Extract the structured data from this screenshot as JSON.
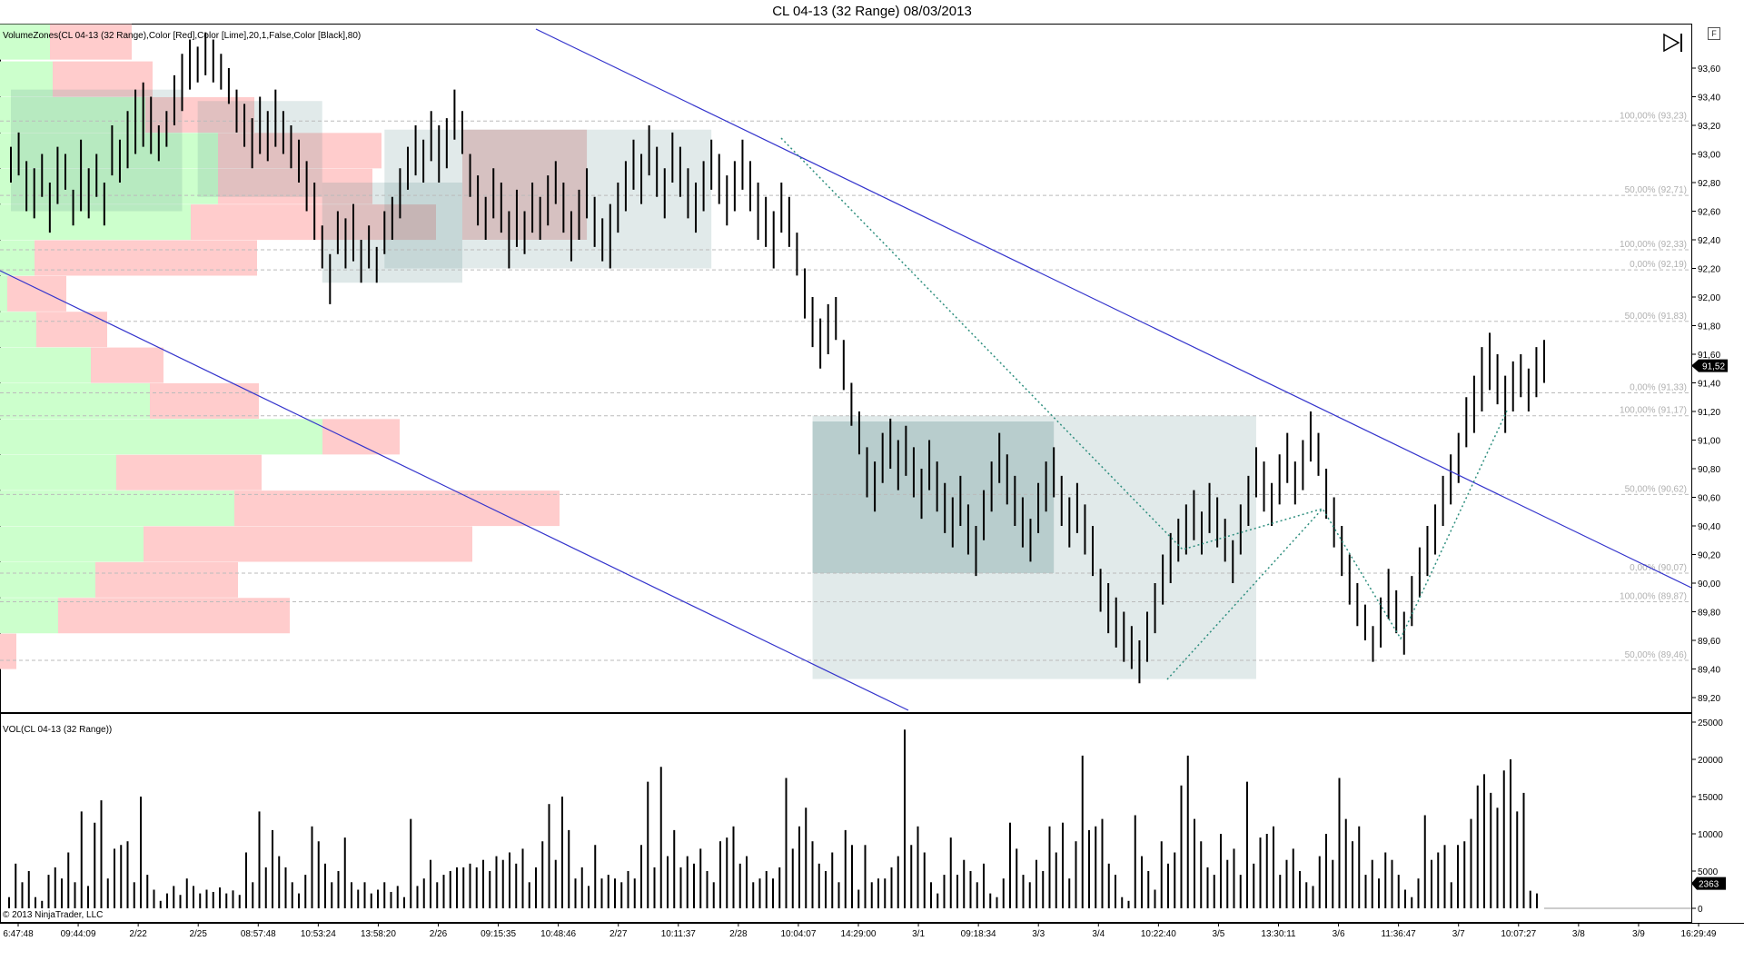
{
  "title": "CL 04-13 (32 Range)  08/03/2013",
  "f_button": "F",
  "copyright": "© 2013 NinjaTrader, LLC",
  "price_panel_label": "VolumeZones(CL 04-13 (32 Range),Color [Red],Color [Lime],20,1,False,Color [Black],80)",
  "volume_panel_label": "VOL(CL 04-13 (32 Range))",
  "current_price": "91,52",
  "current_volume": "2363",
  "chart_data": {
    "type": "bar",
    "price_axis": {
      "ylim": [
        89.1,
        93.85
      ],
      "ticks": [
        "93,60",
        "93,40",
        "93,20",
        "93,00",
        "92,80",
        "92,60",
        "92,40",
        "92,20",
        "92,00",
        "91,80",
        "91,60",
        "91,40",
        "91,20",
        "91,00",
        "90,80",
        "90,60",
        "90,40",
        "90,20",
        "90,00",
        "89,80",
        "89,60",
        "89,40",
        "89,20"
      ]
    },
    "volume_axis": {
      "ylim": [
        0,
        25000
      ],
      "ticks": [
        "25000",
        "20000",
        "15000",
        "10000",
        "5000",
        "0"
      ]
    },
    "time_labels": [
      "6:47:48",
      "09:44:09",
      "2/22",
      "2/25",
      "08:57:48",
      "10:53:24",
      "13:58:20",
      "2/26",
      "09:15:35",
      "10:48:46",
      "2/27",
      "10:11:37",
      "2/28",
      "10:04:07",
      "14:29:00",
      "3/1",
      "09:18:34",
      "3/3",
      "3/4",
      "10:22:40",
      "3/5",
      "13:30:11",
      "3/6",
      "11:36:47",
      "3/7",
      "10:07:27",
      "3/8",
      "3/9",
      "16:29:49"
    ],
    "fib_labels": [
      "100,00% (93,23)",
      "50,00% (92,71)",
      "100,00% (92,33)",
      "0,00% (92,19)",
      "50,00% (91,83)",
      "0,00% (91,33)",
      "100,00% (91,17)",
      "50,00% (90,62)",
      "0,00% (90,07)",
      "100,00% (89,87)",
      "50,00% (89,46)"
    ],
    "fib_levels": [
      93.23,
      92.71,
      92.33,
      92.19,
      91.83,
      91.33,
      91.17,
      90.62,
      90.07,
      89.87,
      89.46
    ],
    "volume_zones": [
      {
        "price": 93.78,
        "buy": 55,
        "sell": 90
      },
      {
        "price": 93.52,
        "buy": 58,
        "sell": 110
      },
      {
        "price": 93.27,
        "buy": 160,
        "sell": 120
      },
      {
        "price": 93.02,
        "buy": 240,
        "sell": 180
      },
      {
        "price": 92.77,
        "buy": 240,
        "sell": 170
      },
      {
        "price": 92.52,
        "buy": 210,
        "sell": 270
      },
      {
        "price": 92.27,
        "buy": 38,
        "sell": 245
      },
      {
        "price": 92.02,
        "buy": 8,
        "sell": 65
      },
      {
        "price": 91.77,
        "buy": 40,
        "sell": 78
      },
      {
        "price": 91.52,
        "buy": 100,
        "sell": 80
      },
      {
        "price": 91.27,
        "buy": 165,
        "sell": 120
      },
      {
        "price": 91.02,
        "buy": 355,
        "sell": 85
      },
      {
        "price": 90.77,
        "buy": 128,
        "sell": 160
      },
      {
        "price": 90.52,
        "buy": 258,
        "sell": 358
      },
      {
        "price": 90.27,
        "buy": 158,
        "sell": 362
      },
      {
        "price": 90.02,
        "buy": 105,
        "sell": 157
      },
      {
        "price": 89.77,
        "buy": 64,
        "sell": 255
      },
      {
        "price": 89.52,
        "buy": 0,
        "sell": 18
      }
    ],
    "price_bars": [
      [
        93.05,
        92.8
      ],
      [
        93.15,
        92.85
      ],
      [
        92.95,
        92.6
      ],
      [
        92.9,
        92.55
      ],
      [
        93.0,
        92.7
      ],
      [
        92.8,
        92.45
      ],
      [
        93.05,
        92.65
      ],
      [
        93.0,
        92.75
      ],
      [
        92.75,
        92.5
      ],
      [
        93.1,
        92.6
      ],
      [
        92.9,
        92.55
      ],
      [
        93.0,
        92.7
      ],
      [
        92.8,
        92.5
      ],
      [
        93.2,
        92.85
      ],
      [
        93.1,
        92.8
      ],
      [
        93.3,
        92.9
      ],
      [
        93.45,
        93.0
      ],
      [
        93.5,
        93.05
      ],
      [
        93.4,
        93.0
      ],
      [
        93.2,
        92.95
      ],
      [
        93.3,
        93.05
      ],
      [
        93.55,
        93.2
      ],
      [
        93.7,
        93.3
      ],
      [
        93.8,
        93.45
      ],
      [
        93.75,
        93.5
      ],
      [
        93.85,
        93.55
      ],
      [
        93.8,
        93.5
      ],
      [
        93.7,
        93.45
      ],
      [
        93.6,
        93.35
      ],
      [
        93.45,
        93.15
      ],
      [
        93.35,
        93.05
      ],
      [
        93.25,
        92.9
      ],
      [
        93.4,
        93.0
      ],
      [
        93.3,
        92.95
      ],
      [
        93.45,
        93.05
      ],
      [
        93.3,
        93.0
      ],
      [
        93.2,
        92.9
      ],
      [
        93.1,
        92.8
      ],
      [
        92.95,
        92.6
      ],
      [
        92.8,
        92.4
      ],
      [
        92.5,
        92.2
      ],
      [
        92.3,
        91.95
      ],
      [
        92.6,
        92.3
      ],
      [
        92.55,
        92.2
      ],
      [
        92.65,
        92.25
      ],
      [
        92.4,
        92.1
      ],
      [
        92.5,
        92.2
      ],
      [
        92.35,
        92.1
      ],
      [
        92.6,
        92.3
      ],
      [
        92.7,
        92.4
      ],
      [
        92.9,
        92.55
      ],
      [
        93.05,
        92.75
      ],
      [
        93.2,
        92.85
      ],
      [
        93.1,
        92.8
      ],
      [
        93.3,
        92.95
      ],
      [
        93.2,
        92.8
      ],
      [
        93.25,
        92.9
      ],
      [
        93.45,
        93.1
      ],
      [
        93.3,
        93.0
      ],
      [
        93.0,
        92.7
      ],
      [
        92.85,
        92.5
      ],
      [
        92.7,
        92.4
      ],
      [
        92.9,
        92.55
      ],
      [
        92.8,
        92.45
      ],
      [
        92.6,
        92.2
      ],
      [
        92.75,
        92.35
      ],
      [
        92.6,
        92.3
      ],
      [
        92.8,
        92.45
      ],
      [
        92.7,
        92.4
      ],
      [
        92.85,
        92.5
      ],
      [
        92.95,
        92.65
      ],
      [
        92.8,
        92.45
      ],
      [
        92.6,
        92.25
      ],
      [
        92.75,
        92.4
      ],
      [
        92.9,
        92.55
      ],
      [
        92.7,
        92.35
      ],
      [
        92.55,
        92.25
      ],
      [
        92.65,
        92.2
      ],
      [
        92.8,
        92.45
      ],
      [
        92.95,
        92.6
      ],
      [
        93.1,
        92.75
      ],
      [
        93.0,
        92.65
      ],
      [
        93.2,
        92.85
      ],
      [
        93.05,
        92.7
      ],
      [
        92.9,
        92.55
      ],
      [
        93.15,
        92.8
      ],
      [
        93.05,
        92.7
      ],
      [
        92.9,
        92.55
      ],
      [
        92.8,
        92.45
      ],
      [
        92.95,
        92.6
      ],
      [
        93.1,
        92.75
      ],
      [
        93.0,
        92.65
      ],
      [
        92.85,
        92.5
      ],
      [
        92.95,
        92.6
      ],
      [
        93.1,
        92.75
      ],
      [
        92.95,
        92.6
      ],
      [
        92.8,
        92.4
      ],
      [
        92.7,
        92.35
      ],
      [
        92.6,
        92.2
      ],
      [
        92.8,
        92.45
      ],
      [
        92.7,
        92.35
      ],
      [
        92.45,
        92.15
      ],
      [
        92.2,
        91.85
      ],
      [
        92.0,
        91.65
      ],
      [
        91.85,
        91.5
      ],
      [
        91.95,
        91.6
      ],
      [
        92.0,
        91.7
      ],
      [
        91.7,
        91.35
      ],
      [
        91.4,
        91.1
      ],
      [
        91.2,
        90.9
      ],
      [
        90.95,
        90.6
      ],
      [
        90.85,
        90.5
      ],
      [
        91.05,
        90.7
      ],
      [
        91.15,
        90.8
      ],
      [
        91.0,
        90.65
      ],
      [
        91.1,
        90.75
      ],
      [
        90.95,
        90.6
      ],
      [
        90.8,
        90.45
      ],
      [
        91.0,
        90.65
      ],
      [
        90.85,
        90.5
      ],
      [
        90.7,
        90.35
      ],
      [
        90.6,
        90.25
      ],
      [
        90.75,
        90.4
      ],
      [
        90.55,
        90.2
      ],
      [
        90.4,
        90.05
      ],
      [
        90.65,
        90.3
      ],
      [
        90.85,
        90.5
      ],
      [
        91.05,
        90.7
      ],
      [
        90.9,
        90.55
      ],
      [
        90.75,
        90.4
      ],
      [
        90.6,
        90.25
      ],
      [
        90.45,
        90.15
      ],
      [
        90.7,
        90.35
      ],
      [
        90.85,
        90.5
      ],
      [
        90.95,
        90.6
      ],
      [
        90.75,
        90.4
      ],
      [
        90.6,
        90.25
      ],
      [
        90.7,
        90.35
      ],
      [
        90.55,
        90.2
      ],
      [
        90.4,
        90.05
      ],
      [
        90.1,
        89.8
      ],
      [
        90.0,
        89.65
      ],
      [
        89.9,
        89.55
      ],
      [
        89.8,
        89.45
      ],
      [
        89.7,
        89.4
      ],
      [
        89.6,
        89.3
      ],
      [
        89.8,
        89.45
      ],
      [
        90.0,
        89.65
      ],
      [
        90.2,
        89.85
      ],
      [
        90.35,
        90.0
      ],
      [
        90.45,
        90.15
      ],
      [
        90.55,
        90.2
      ],
      [
        90.65,
        90.3
      ],
      [
        90.5,
        90.2
      ],
      [
        90.7,
        90.35
      ],
      [
        90.6,
        90.25
      ],
      [
        90.45,
        90.15
      ],
      [
        90.3,
        90.0
      ],
      [
        90.55,
        90.2
      ],
      [
        90.75,
        90.4
      ],
      [
        90.95,
        90.6
      ],
      [
        90.85,
        90.5
      ],
      [
        90.7,
        90.4
      ],
      [
        90.9,
        90.55
      ],
      [
        91.05,
        90.7
      ],
      [
        90.85,
        90.55
      ],
      [
        91.0,
        90.65
      ],
      [
        91.2,
        90.85
      ],
      [
        91.05,
        90.75
      ],
      [
        90.8,
        90.45
      ],
      [
        90.6,
        90.25
      ],
      [
        90.4,
        90.05
      ],
      [
        90.2,
        89.85
      ],
      [
        90.0,
        89.7
      ],
      [
        89.85,
        89.6
      ],
      [
        89.7,
        89.45
      ],
      [
        89.9,
        89.55
      ],
      [
        90.1,
        89.75
      ],
      [
        89.95,
        89.65
      ],
      [
        89.8,
        89.5
      ],
      [
        90.05,
        89.7
      ],
      [
        90.25,
        89.9
      ],
      [
        90.4,
        90.05
      ],
      [
        90.55,
        90.2
      ],
      [
        90.75,
        90.4
      ],
      [
        90.9,
        90.55
      ],
      [
        91.05,
        90.7
      ],
      [
        91.3,
        90.95
      ],
      [
        91.45,
        91.05
      ],
      [
        91.65,
        91.2
      ],
      [
        91.75,
        91.35
      ],
      [
        91.6,
        91.25
      ],
      [
        91.45,
        91.05
      ],
      [
        91.55,
        91.2
      ],
      [
        91.6,
        91.3
      ],
      [
        91.5,
        91.2
      ],
      [
        91.65,
        91.3
      ],
      [
        91.7,
        91.4
      ]
    ],
    "volume_bars": [
      1500,
      6000,
      3500,
      5000,
      1500,
      1000,
      4500,
      5500,
      4000,
      7500,
      3500,
      13000,
      3000,
      11500,
      14500,
      4000,
      8000,
      8500,
      9000,
      3500,
      15000,
      4500,
      2500,
      1000,
      2000,
      3000,
      1800,
      4000,
      3000,
      2000,
      2500,
      2200,
      2800,
      2000,
      2400,
      1800,
      7500,
      3500,
      13000,
      5500,
      10500,
      7000,
      5500,
      3500,
      2000,
      4500,
      11000,
      9000,
      6000,
      3500,
      5000,
      9500,
      3500,
      2500,
      3500,
      2000,
      2500,
      3500,
      2200,
      3000,
      1500,
      12000,
      3000,
      4000,
      6500,
      3500,
      4500,
      5000,
      5500,
      5500,
      6000,
      5500,
      6500,
      5000,
      7000,
      6500,
      7500,
      6000,
      8000,
      3500,
      5500,
      9000,
      14000,
      6500,
      15000,
      10500,
      4000,
      5500,
      3000,
      8500,
      4000,
      4500,
      4000,
      3500,
      5000,
      4000,
      8500,
      17000,
      5500,
      19000,
      7000,
      10500,
      5500,
      7000,
      6000,
      8000,
      5000,
      3500,
      9000,
      9500,
      11000,
      6000,
      7000,
      3500,
      4000,
      5000,
      4000,
      5500,
      17500,
      8000,
      11000,
      13500,
      9000,
      6000,
      5000,
      7500,
      3500,
      10500,
      8500,
      2500,
      8500,
      3500,
      4000,
      4000,
      5500,
      7000,
      24000,
      8500,
      11000,
      7500,
      3500,
      2000,
      4500,
      9500,
      4500,
      6500,
      5000,
      3500,
      6000,
      2000,
      1500,
      4000,
      11500,
      8000,
      4500,
      3500,
      6500,
      5000,
      11000,
      7500,
      11500,
      4000,
      9000,
      20500,
      10500,
      11000,
      12000,
      6000,
      4500,
      1500,
      1000,
      12500,
      7000,
      5000,
      2500,
      9000,
      6000,
      7500,
      16500,
      20500,
      12000,
      9000,
      5500,
      4500,
      10000,
      6500,
      8000,
      4500,
      17000,
      6000,
      9500,
      10000,
      11000,
      4500,
      6500,
      8000,
      5000,
      3500,
      3000,
      7000,
      10000,
      6500,
      17500,
      12000,
      9000,
      11000,
      4500,
      6500,
      4000,
      7500,
      6500,
      4500,
      2500,
      1500,
      4000,
      12500,
      6500,
      7500,
      8500,
      3500,
      8500,
      9000,
      12000,
      16500,
      18000,
      15500,
      13500,
      18500,
      20000,
      13000,
      15500,
      2363,
      2000
    ]
  }
}
